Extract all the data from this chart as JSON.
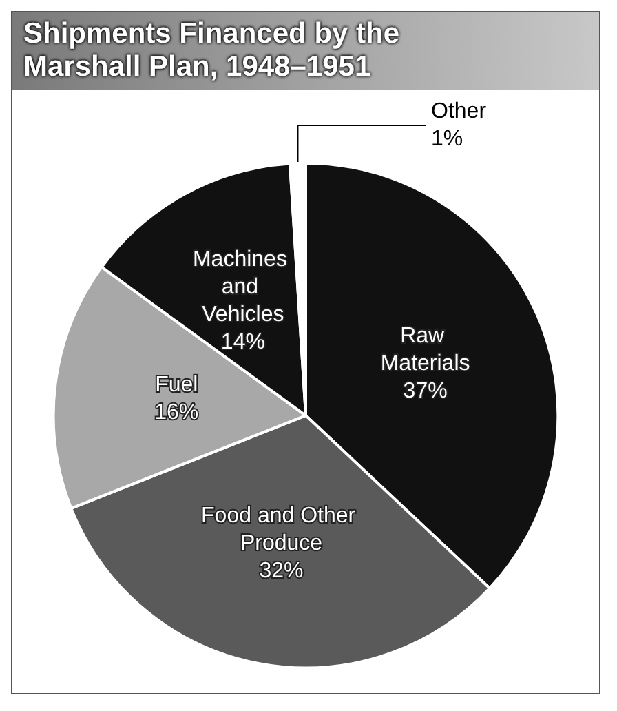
{
  "chart_data": {
    "type": "pie",
    "title": "Shipments Financed by the Marshall Plan, 1948–1951",
    "categories": [
      "Raw Materials",
      "Food and Other Produce",
      "Fuel",
      "Machines and Vehicles",
      "Other"
    ],
    "values": [
      37,
      32,
      16,
      14,
      1
    ],
    "colors": [
      "#111111",
      "#5a5a5a",
      "#a8a8a8",
      "#111111",
      "#ffffff"
    ],
    "value_labels": [
      "37%",
      "32%",
      "16%",
      "14%",
      "1%"
    ],
    "legend": false
  }
}
